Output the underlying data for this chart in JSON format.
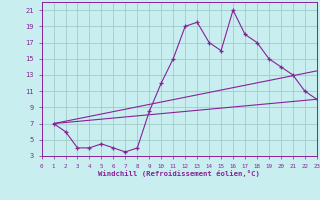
{
  "background_color": "#c8eef0",
  "grid_color": "#a0ccc8",
  "line_color": "#882299",
  "xlabel": "Windchill (Refroidissement éolien,°C)",
  "xlim": [
    0,
    23
  ],
  "ylim": [
    3,
    22
  ],
  "xticks": [
    0,
    1,
    2,
    3,
    4,
    5,
    6,
    7,
    8,
    9,
    10,
    11,
    12,
    13,
    14,
    15,
    16,
    17,
    18,
    19,
    20,
    21,
    22,
    23
  ],
  "yticks": [
    3,
    5,
    7,
    9,
    11,
    13,
    15,
    17,
    19,
    21
  ],
  "curve1_x": [
    1,
    2,
    3,
    4,
    5,
    6,
    7,
    8,
    9,
    10,
    11,
    12,
    13,
    14,
    15,
    16,
    17,
    18,
    19,
    20,
    21,
    22,
    23
  ],
  "curve1_y": [
    7,
    6,
    4,
    4,
    4.5,
    4,
    3.5,
    4,
    8.5,
    12,
    15,
    19,
    19.5,
    17,
    16,
    21,
    18,
    17,
    15,
    14,
    13,
    11,
    10
  ],
  "line2_x": [
    1,
    23
  ],
  "line2_y": [
    7,
    10
  ],
  "line3_x": [
    1,
    23
  ],
  "line3_y": [
    7,
    13.5
  ]
}
